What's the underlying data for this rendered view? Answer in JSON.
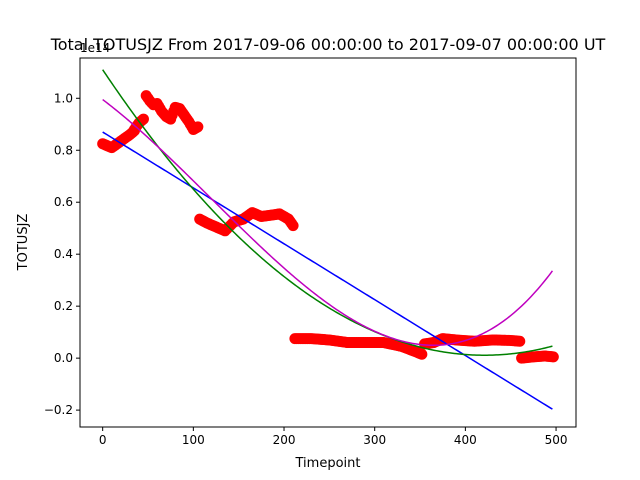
{
  "chart_data": {
    "type": "scatter",
    "title": "Total TOTUSJZ From 2017-09-06 00:00:00 to 2017-09-07 00:00:00 UT",
    "xlabel": "Timepoint",
    "ylabel": "TOTUSJZ",
    "y_offset_label": "1e14",
    "xlim": [
      -25,
      522
    ],
    "ylim": [
      -0.265,
      1.155
    ],
    "y_scale_factor": 100000000000000.0,
    "xticks": [
      0,
      100,
      200,
      300,
      400,
      500
    ],
    "xtick_labels": [
      "0",
      "100",
      "200",
      "300",
      "400",
      "500"
    ],
    "yticks": [
      -0.2,
      0.0,
      0.2,
      0.4,
      0.6,
      0.8,
      1.0
    ],
    "ytick_labels": [
      "−0.2",
      "0.0",
      "0.2",
      "0.4",
      "0.6",
      "0.8",
      "1.0"
    ],
    "grid": false,
    "colors": {
      "points": "#ff0000",
      "linear_fit": "#0000ff",
      "quadratic_fit": "#008000",
      "cubic_fit": "#bf00bf"
    },
    "scatter_segments": [
      {
        "x": [
          0,
          10,
          20,
          30,
          35
        ],
        "y": [
          0.825,
          0.81,
          0.835,
          0.86,
          0.875
        ]
      },
      {
        "x": [
          35,
          40,
          45
        ],
        "y": [
          0.88,
          0.905,
          0.92
        ]
      },
      {
        "x": [
          48,
          52,
          56,
          60,
          65,
          70,
          75,
          80,
          85,
          90,
          95,
          100,
          105
        ],
        "y": [
          1.01,
          0.99,
          0.975,
          0.98,
          0.95,
          0.93,
          0.92,
          0.965,
          0.96,
          0.935,
          0.91,
          0.88,
          0.89
        ]
      },
      {
        "x": [
          107,
          115,
          125,
          135,
          145,
          155,
          165,
          175,
          185,
          195,
          205,
          210
        ],
        "y": [
          0.535,
          0.52,
          0.505,
          0.49,
          0.525,
          0.535,
          0.56,
          0.545,
          0.55,
          0.555,
          0.535,
          0.51
        ]
      },
      {
        "x": [
          212,
          230,
          250,
          270,
          290,
          310,
          330,
          345,
          352
        ],
        "y": [
          0.075,
          0.075,
          0.07,
          0.06,
          0.06,
          0.06,
          0.045,
          0.025,
          0.015
        ]
      },
      {
        "x": [
          355,
          365,
          375,
          390,
          410,
          430,
          450,
          460
        ],
        "y": [
          0.055,
          0.06,
          0.075,
          0.07,
          0.065,
          0.07,
          0.068,
          0.065
        ]
      },
      {
        "x": [
          462,
          475,
          488,
          497
        ],
        "y": [
          0.0,
          0.005,
          0.008,
          0.005
        ]
      }
    ],
    "series": [
      {
        "name": "",
        "kind": "linear",
        "coef": [
          0.87,
          -0.00215
        ]
      },
      {
        "name": "",
        "kind": "quadratic",
        "coef": [
          1.11,
          -0.00522,
          6.2e-06
        ]
      },
      {
        "name": "",
        "kind": "cubic",
        "coef": [
          0.995,
          -0.00263,
          -6.9e-06,
          1.92e-08
        ]
      }
    ],
    "fit_range": [
      0,
      497
    ]
  }
}
